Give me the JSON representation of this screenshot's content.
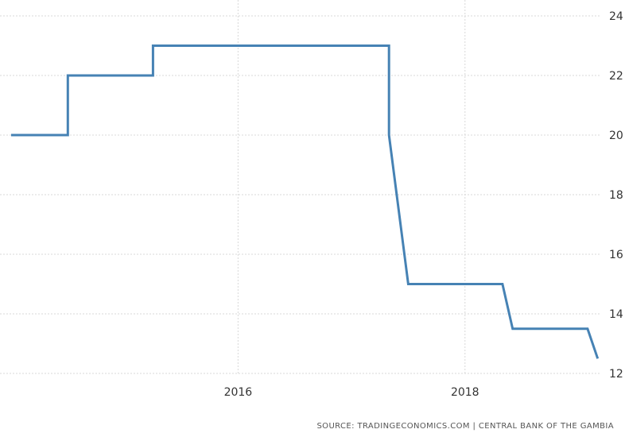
{
  "chart_data": {
    "type": "line",
    "step": true,
    "series": [
      {
        "color": "#4682b4",
        "points": [
          {
            "x": 2014.0,
            "y": 20
          },
          {
            "x": 2014.5,
            "y": 20
          },
          {
            "x": 2014.5,
            "y": 22
          },
          {
            "x": 2015.25,
            "y": 22
          },
          {
            "x": 2015.25,
            "y": 23
          },
          {
            "x": 2017.33,
            "y": 23
          },
          {
            "x": 2017.33,
            "y": 20
          },
          {
            "x": 2017.5,
            "y": 15
          },
          {
            "x": 2018.33,
            "y": 15
          },
          {
            "x": 2018.42,
            "y": 13.5
          },
          {
            "x": 2019.08,
            "y": 13.5
          },
          {
            "x": 2019.17,
            "y": 12.5
          }
        ]
      }
    ],
    "xlim": [
      2014.0,
      2019.2
    ],
    "ylim": [
      12,
      24
    ],
    "xticks": [
      2016,
      2018
    ],
    "xtick_labels": [
      "2016",
      "2018"
    ],
    "yticks": [
      12,
      14,
      16,
      18,
      20,
      22,
      24
    ],
    "ytick_labels": [
      "12",
      "14",
      "16",
      "18",
      "20",
      "22",
      "24"
    ],
    "grid": true,
    "y_axis_side": "right",
    "title": "",
    "xlabel": "",
    "ylabel": ""
  },
  "source_text": "SOURCE: TRADINGECONOMICS.COM | CENTRAL BANK OF THE GAMBIA"
}
